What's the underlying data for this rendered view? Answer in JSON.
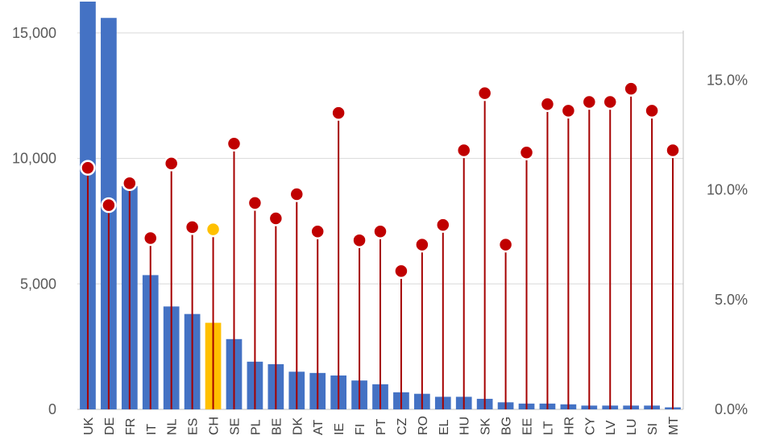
{
  "chart_data": {
    "type": "bar",
    "title": "",
    "xlabel": "",
    "ylabel": "",
    "y2label": "",
    "categories": [
      "UK",
      "DE",
      "FR",
      "IT",
      "NL",
      "ES",
      "CH",
      "SE",
      "PL",
      "BE",
      "DK",
      "AT",
      "IE",
      "FI",
      "PT",
      "CZ",
      "RO",
      "EL",
      "HU",
      "SK",
      "BG",
      "EE",
      "LT",
      "HR",
      "CY",
      "LV",
      "LU",
      "SI",
      "MT"
    ],
    "highlight_category": "CH",
    "series": [
      {
        "axis": "left",
        "kind": "bar",
        "color": "#4472C4",
        "highlight_color": "#FFC000",
        "values": [
          16250,
          15600,
          8900,
          5350,
          4100,
          3800,
          3450,
          2800,
          1900,
          1800,
          1500,
          1450,
          1350,
          1150,
          1000,
          680,
          620,
          500,
          500,
          420,
          280,
          230,
          230,
          200,
          150,
          150,
          150,
          150,
          80
        ]
      },
      {
        "axis": "right",
        "kind": "lollipop",
        "color": "#C00000",
        "highlight_color": "#FFC000",
        "stem_color": "#A50000",
        "values": [
          11.0,
          9.3,
          10.3,
          7.8,
          11.2,
          8.3,
          8.2,
          12.1,
          9.4,
          8.7,
          9.8,
          8.1,
          13.5,
          7.7,
          8.1,
          6.3,
          7.5,
          8.4,
          11.8,
          14.4,
          7.5,
          11.7,
          13.9,
          13.6,
          14.0,
          14.0,
          14.6,
          13.6,
          11.8
        ]
      }
    ],
    "yaxis_left": {
      "min": 0,
      "max": 16250,
      "ticks": [
        0,
        5000,
        10000,
        15000
      ],
      "tick_labels": [
        "0",
        "5,000",
        "10,000",
        "15,000"
      ]
    },
    "yaxis_right": {
      "min": 0,
      "max": 18.57,
      "ticks": [
        0,
        5,
        10,
        15
      ],
      "tick_labels": [
        "0.0%",
        "5.0%",
        "10.0%",
        "15.0%"
      ]
    },
    "grid": true,
    "legend": "none"
  }
}
